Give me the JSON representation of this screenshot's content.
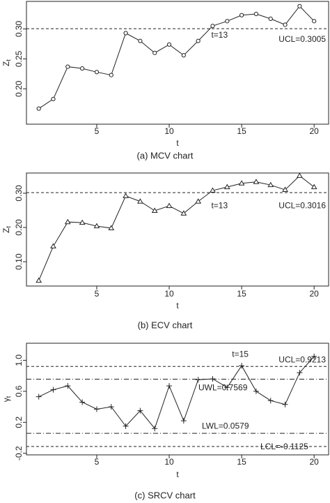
{
  "chart_data": [
    {
      "type": "line",
      "caption": "(a) MCV chart",
      "xlabel": "t",
      "ylabel": "Z",
      "ylabel_sub": "t",
      "marker": "circle",
      "x": [
        1,
        2,
        3,
        4,
        5,
        6,
        7,
        8,
        9,
        10,
        11,
        12,
        13,
        14,
        15,
        16,
        17,
        18,
        19,
        20
      ],
      "series": [
        {
          "color": "#222222",
          "values": [
            0.167,
            0.183,
            0.237,
            0.234,
            0.228,
            0.223,
            0.293,
            0.28,
            0.26,
            0.274,
            0.256,
            0.28,
            0.305,
            0.313,
            0.323,
            0.325,
            0.317,
            0.307,
            0.338,
            0.313
          ]
        }
      ],
      "xlim": [
        0.15,
        21
      ],
      "ylim": [
        0.141,
        0.346
      ],
      "xticks": [
        5,
        10,
        15,
        20
      ],
      "yticks": [
        {
          "value": 0.2,
          "label": "0.20"
        },
        {
          "value": 0.25,
          "label": "0.25"
        },
        {
          "value": 0.3,
          "label": "0.30"
        }
      ],
      "hlines": [
        {
          "value": 0.3005,
          "label": "UCL=0.3005",
          "style": "dashed"
        }
      ],
      "annotation": "t=13"
    },
    {
      "type": "line",
      "caption": "(b) ECV chart",
      "xlabel": "t",
      "ylabel": "Z",
      "ylabel_sub": "t",
      "marker": "triangle",
      "x": [
        1,
        2,
        3,
        4,
        5,
        6,
        7,
        8,
        9,
        10,
        11,
        12,
        13,
        14,
        15,
        16,
        17,
        18,
        19,
        20
      ],
      "series": [
        {
          "color": "#222222",
          "values": [
            0.045,
            0.145,
            0.216,
            0.214,
            0.204,
            0.198,
            0.292,
            0.276,
            0.249,
            0.263,
            0.241,
            0.276,
            0.308,
            0.318,
            0.329,
            0.333,
            0.324,
            0.31,
            0.351,
            0.318
          ]
        }
      ],
      "xlim": [
        0.15,
        21
      ],
      "ylim": [
        0.029,
        0.359
      ],
      "xticks": [
        5,
        10,
        15,
        20
      ],
      "yticks": [
        {
          "value": 0.1,
          "label": "0.10"
        },
        {
          "value": 0.2,
          "label": "0.20"
        },
        {
          "value": 0.3,
          "label": "0.30"
        }
      ],
      "hlines": [
        {
          "value": 0.3016,
          "label": "UCL=0.3016",
          "style": "dashed"
        }
      ],
      "annotation": "t=13"
    },
    {
      "type": "line",
      "caption": "(c) SRCV chart",
      "xlabel": "t",
      "ylabel": "γ",
      "ylabel_sub": "t",
      "marker": "plus",
      "x": [
        1,
        2,
        3,
        4,
        5,
        6,
        7,
        8,
        9,
        10,
        11,
        12,
        13,
        14,
        15,
        16,
        17,
        18,
        19,
        20
      ],
      "series": [
        {
          "color": "#222222",
          "values": [
            0.53,
            0.62,
            0.67,
            0.46,
            0.37,
            0.4,
            0.15,
            0.35,
            0.12,
            0.67,
            0.22,
            0.75,
            0.76,
            0.65,
            0.93,
            0.6,
            0.48,
            0.43,
            0.84,
            1.05
          ]
        }
      ],
      "xlim": [
        0.15,
        21
      ],
      "ylim": [
        -0.22,
        1.22
      ],
      "xticks": [
        5,
        10,
        15,
        20
      ],
      "yticks": [
        -0.2,
        0.2,
        0.6,
        {
          "value": 1.0,
          "label": "1.0"
        }
      ],
      "hlines": [
        {
          "value": 0.9213,
          "label": "UCL=0.9213",
          "style": "dashed"
        },
        {
          "value": 0.7569,
          "label": "UWL=0.7569",
          "style": "dotdash"
        },
        {
          "value": 0.0579,
          "label": "LWL=0.0579",
          "style": "dotdash"
        },
        {
          "value": -0.1125,
          "label": "LCL=-0.1125",
          "style": "dashed"
        }
      ],
      "annotation": "t=15"
    }
  ]
}
